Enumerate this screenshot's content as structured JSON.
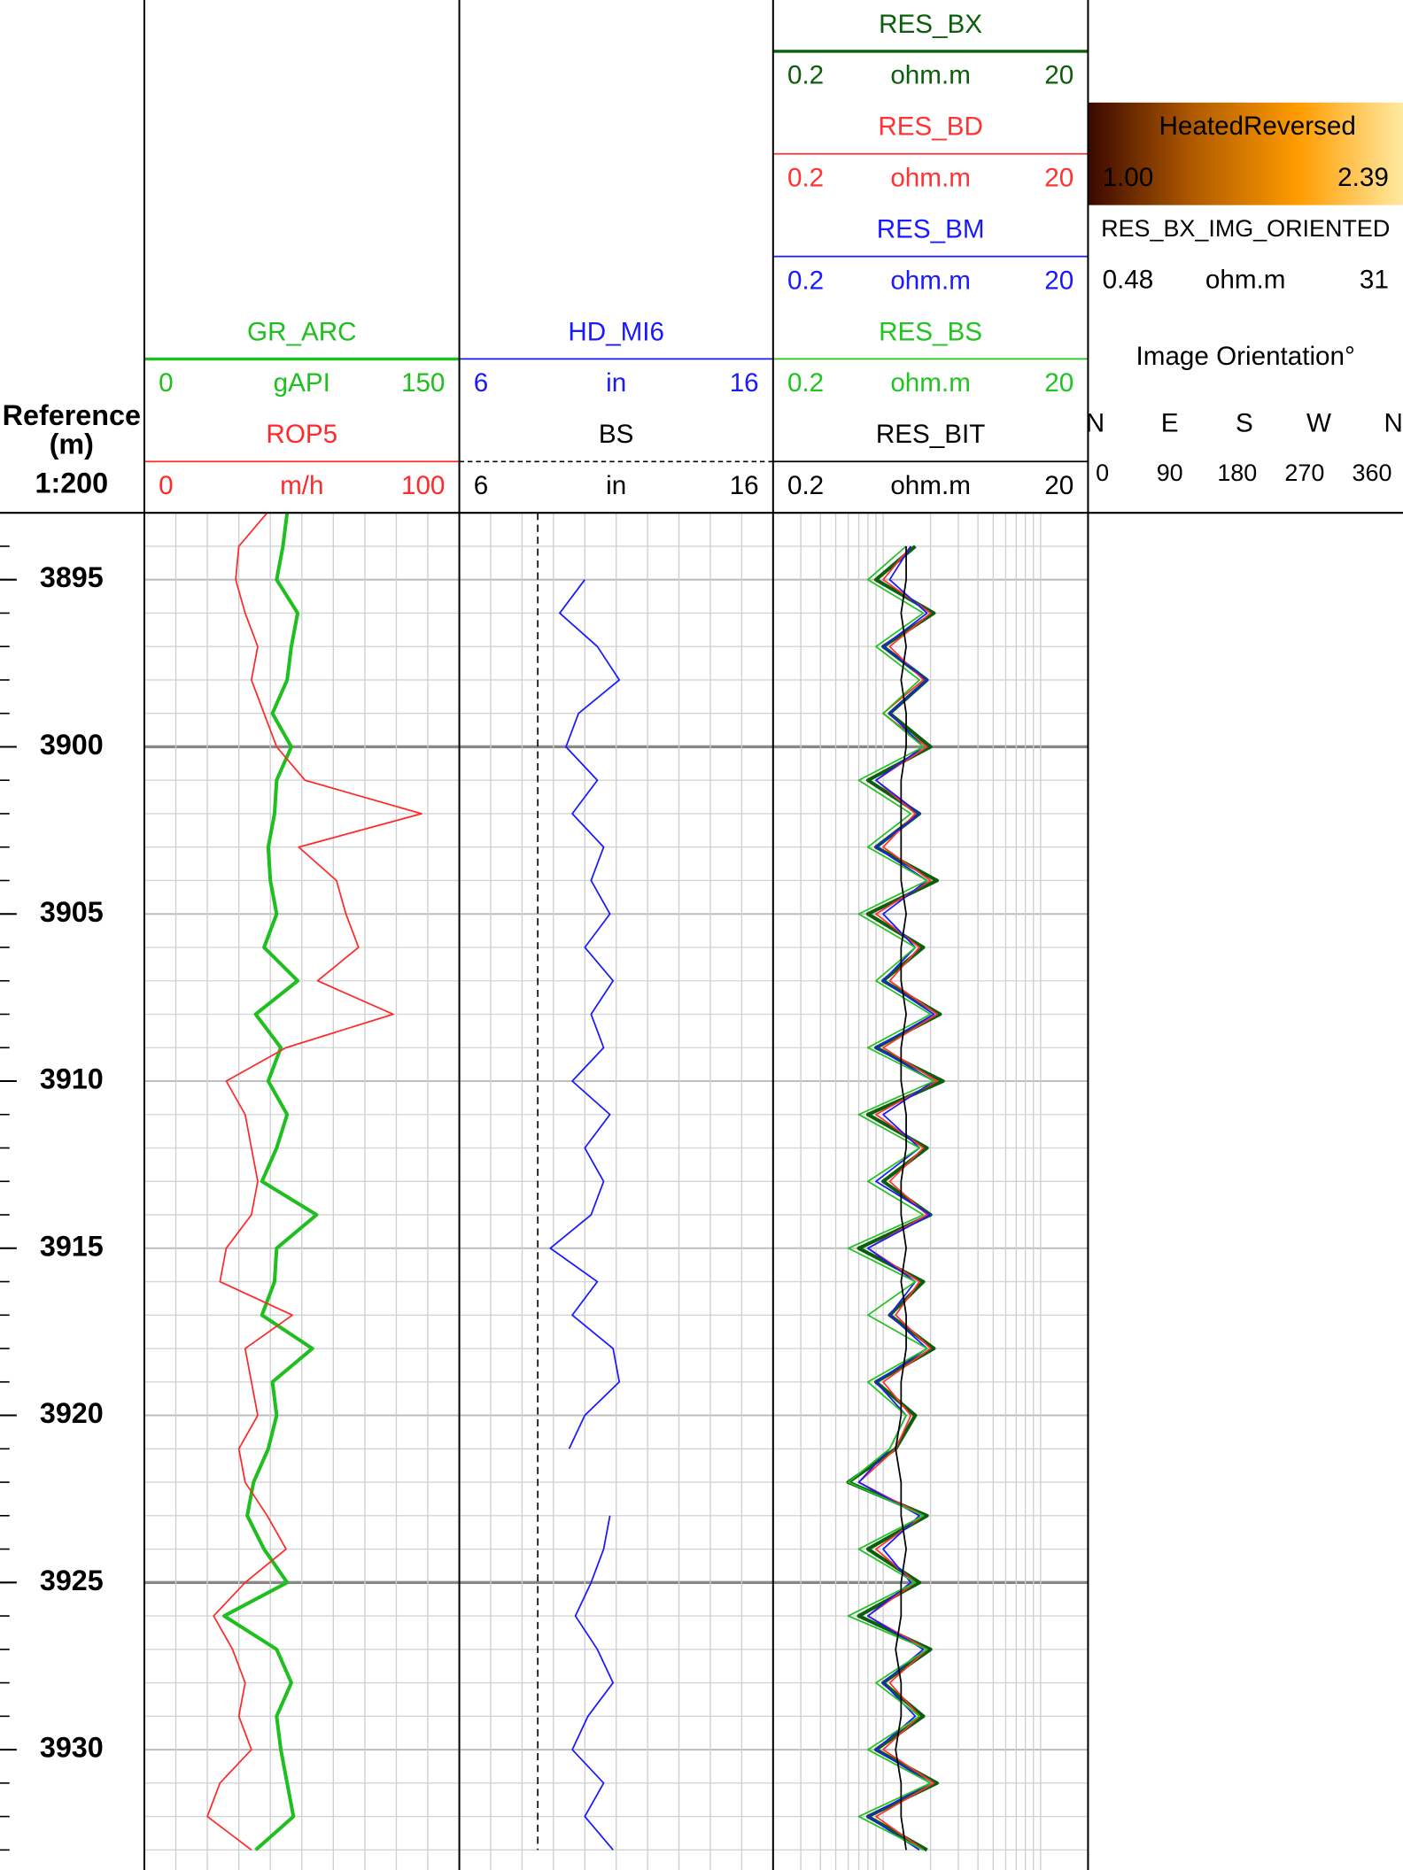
{
  "chart_data": {
    "type": "well-log",
    "index_title": "Reference",
    "index_unit": "(m)",
    "scale_label": "1:200",
    "ylim": [
      3893,
      3933.6
    ],
    "yticks": [
      3895,
      3900,
      3905,
      3910,
      3915,
      3920,
      3925,
      3930
    ],
    "minor_yticks": [
      3893,
      3894,
      3895,
      3896,
      3897,
      3898,
      3899,
      3900,
      3901,
      3902,
      3903,
      3904,
      3905,
      3906,
      3907,
      3908,
      3909,
      3910,
      3911,
      3912,
      3913,
      3914,
      3915,
      3916,
      3917,
      3918,
      3919,
      3920,
      3921,
      3922,
      3923,
      3924,
      3925,
      3926,
      3927,
      3928,
      3929,
      3930,
      3931,
      3932,
      3933
    ],
    "highlight_yticks": [
      3900,
      3925
    ],
    "depths": [
      3893,
      3894,
      3895,
      3896,
      3897,
      3898,
      3899,
      3900,
      3901,
      3902,
      3903,
      3904,
      3905,
      3906,
      3907,
      3908,
      3909,
      3910,
      3911,
      3912,
      3913,
      3914,
      3915,
      3916,
      3917,
      3918,
      3919,
      3920,
      3921,
      3922,
      3923,
      3924,
      3925,
      3926,
      3927,
      3928,
      3929,
      3930,
      3931,
      3932,
      3933
    ],
    "tracks": [
      {
        "log": false,
        "xgrid": [
          0,
          15,
          30,
          45,
          60,
          75,
          90,
          105,
          120,
          135,
          150
        ],
        "curves": [
          {
            "name": "GR_ARC",
            "unit": "gAPI",
            "color": "#1fbf1f",
            "xlim": [
              0,
              150
            ],
            "line_width": 3,
            "values": [
              68,
              66,
              63,
              73,
              70,
              68,
              61,
              70,
              63,
              62,
              59,
              60,
              63,
              57,
              73,
              53,
              65,
              59,
              68,
              63,
              56,
              82,
              63,
              62,
              56,
              80,
              61,
              63,
              59,
              52,
              49,
              57,
              68,
              38,
              63,
              70,
              63,
              65,
              68,
              71,
              53
            ]
          },
          {
            "name": "ROP5",
            "unit": "m/h",
            "color": "#ff2a2a",
            "xlim": [
              0,
              100
            ],
            "line_width": 1.3,
            "values": [
              39,
              30,
              29,
              32,
              36,
              34,
              38,
              42,
              51,
              88,
              49,
              61,
              64,
              68,
              55,
              79,
              45,
              26,
              32,
              34,
              36,
              34,
              26,
              24,
              47,
              32,
              34,
              36,
              30,
              32,
              39,
              45,
              32,
              22,
              28,
              32,
              30,
              34,
              24,
              20,
              34
            ]
          }
        ]
      },
      {
        "log": false,
        "xgrid": [
          6,
          7,
          8,
          9,
          10,
          11,
          12,
          13,
          14,
          15,
          16
        ],
        "curves": [
          {
            "name": "HD_MI6",
            "unit": "in",
            "color": "#1a1aff",
            "xlim": [
              6,
              16
            ],
            "line_width": 1.3,
            "values": [
              null,
              null,
              10.0,
              9.2,
              10.4,
              11.1,
              9.8,
              9.4,
              10.4,
              9.6,
              10.6,
              10.2,
              10.8,
              10.0,
              10.9,
              10.2,
              10.6,
              9.6,
              10.8,
              10.0,
              10.6,
              10.2,
              8.9,
              10.4,
              9.6,
              10.9,
              11.1,
              10.0,
              9.5,
              null,
              10.8,
              10.6,
              10.2,
              9.7,
              10.4,
              10.9,
              10.1,
              9.6,
              10.6,
              10.0,
              10.9
            ]
          },
          {
            "name": "BS",
            "unit": "in",
            "color": "#000000",
            "xlim": [
              6,
              16
            ],
            "line_width": 1.2,
            "line_style": "dashed",
            "values": [
              8.5,
              8.5,
              8.5,
              8.5,
              8.5,
              8.5,
              8.5,
              8.5,
              8.5,
              8.5,
              8.5,
              8.5,
              8.5,
              8.5,
              8.5,
              8.5,
              8.5,
              8.5,
              8.5,
              8.5,
              8.5,
              8.5,
              8.5,
              8.5,
              8.5,
              8.5,
              8.5,
              8.5,
              8.5,
              8.5,
              8.5,
              8.5,
              8.5,
              8.5,
              8.5,
              8.5,
              8.5,
              8.5,
              8.5,
              8.5,
              8.5
            ]
          }
        ]
      },
      {
        "log": true,
        "xgrid": [
          0.2,
          0.3,
          0.4,
          0.5,
          0.6,
          0.7,
          0.8,
          0.9,
          1,
          2,
          3,
          4,
          5,
          6,
          7,
          8,
          9,
          10,
          20
        ],
        "curves": [
          {
            "name": "RES_BX",
            "unit": "ohm.m",
            "color": "#0b5e0b",
            "xlim": [
              0.2,
              20
            ],
            "line_width": 3,
            "values": [
              null,
              1.6,
              0.9,
              2.1,
              1.0,
              1.9,
              1.1,
              2.0,
              0.8,
              1.7,
              0.9,
              2.2,
              0.8,
              1.8,
              1.0,
              2.3,
              0.9,
              2.4,
              0.8,
              1.9,
              1.0,
              2.0,
              0.7,
              1.8,
              1.1,
              2.1,
              0.9,
              1.6,
              1.2,
              0.6,
              1.9,
              0.8,
              1.7,
              0.7,
              2.0,
              1.0,
              1.8,
              0.9,
              2.2,
              0.8,
              1.9
            ]
          },
          {
            "name": "RES_BD",
            "unit": "ohm.m",
            "color": "#ff3333",
            "xlim": [
              0.2,
              20
            ],
            "line_width": 1.3,
            "values": [
              null,
              1.5,
              1.0,
              2.0,
              1.1,
              1.8,
              1.0,
              1.9,
              0.9,
              1.6,
              1.0,
              2.0,
              0.9,
              1.7,
              1.1,
              2.2,
              1.0,
              2.2,
              0.9,
              1.8,
              1.1,
              1.9,
              0.8,
              1.7,
              1.2,
              2.0,
              1.0,
              1.5,
              1.2,
              0.7,
              1.8,
              0.9,
              1.6,
              0.8,
              1.9,
              1.1,
              1.7,
              1.0,
              2.1,
              0.9,
              1.8
            ]
          },
          {
            "name": "RES_BM",
            "unit": "ohm.m",
            "color": "#1a1aff",
            "xlim": [
              0.2,
              20
            ],
            "line_width": 1.3,
            "values": [
              null,
              1.5,
              1.1,
              1.9,
              1.0,
              1.9,
              1.1,
              1.8,
              0.9,
              1.7,
              0.9,
              1.9,
              1.0,
              1.6,
              1.0,
              2.1,
              0.9,
              2.1,
              1.0,
              1.7,
              0.9,
              2.0,
              0.8,
              1.6,
              1.1,
              1.9,
              0.9,
              1.4,
              1.1,
              0.7,
              1.7,
              1.0,
              1.5,
              0.8,
              1.8,
              1.0,
              1.6,
              0.9,
              2.0,
              0.8,
              1.7
            ]
          },
          {
            "name": "RES_BS",
            "unit": "ohm.m",
            "color": "#22c322",
            "xlim": [
              0.2,
              20
            ],
            "line_width": 1.3,
            "values": [
              null,
              1.4,
              0.8,
              1.8,
              0.9,
              1.7,
              1.0,
              1.8,
              0.7,
              1.5,
              0.8,
              1.9,
              0.7,
              1.6,
              0.9,
              2.0,
              0.8,
              2.1,
              0.7,
              1.7,
              0.8,
              1.8,
              0.6,
              1.6,
              0.8,
              1.9,
              0.8,
              1.4,
              1.1,
              0.6,
              1.8,
              0.7,
              1.6,
              0.6,
              1.9,
              0.9,
              1.7,
              0.8,
              2.0,
              0.7,
              1.8
            ]
          },
          {
            "name": "RES_BIT",
            "unit": "ohm.m",
            "color": "#000000",
            "xlim": [
              0.2,
              20
            ],
            "line_width": 1.3,
            "values": [
              null,
              1.4,
              1.4,
              1.3,
              1.4,
              1.3,
              1.4,
              1.4,
              1.3,
              1.3,
              1.3,
              1.3,
              1.4,
              1.3,
              1.3,
              1.4,
              1.3,
              1.3,
              1.4,
              1.4,
              1.3,
              1.3,
              1.4,
              1.3,
              1.4,
              1.4,
              1.3,
              1.3,
              1.2,
              1.3,
              1.3,
              1.4,
              1.3,
              1.3,
              1.2,
              1.3,
              1.3,
              1.2,
              1.3,
              1.3,
              1.4
            ]
          }
        ]
      }
    ],
    "image_track": {
      "palette": "HeatedReversed",
      "colors": [
        "#3a0800",
        "#b05a00",
        "#ff9c00",
        "#ffe9a0"
      ],
      "colorbar_lim": [
        {
          "value": 1,
          "label": "1.00"
        },
        {
          "value": 2.39,
          "label": "2.39"
        }
      ],
      "curve": "RES_BX_IMG_ORIENTED",
      "min": 0.48,
      "unit": "ohm.m",
      "max": 31,
      "orientation_title": "Image Orientation°",
      "directions": [
        "N",
        "E",
        "S",
        "W",
        "N"
      ],
      "azimuths": [
        0,
        90,
        180,
        270,
        360
      ]
    }
  }
}
